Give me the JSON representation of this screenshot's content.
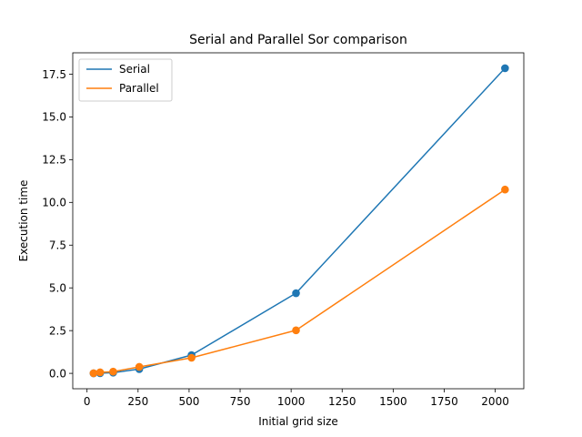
{
  "chart_data": {
    "type": "line",
    "title": "Serial and Parallel Sor comparison",
    "xlabel": "Initial grid size",
    "ylabel": "Execution time",
    "xlim": [
      -70,
      2140
    ],
    "ylim": [
      -0.9,
      18.75
    ],
    "xticks": [
      0,
      250,
      500,
      750,
      1000,
      1250,
      1500,
      1750,
      2000
    ],
    "xtick_labels": [
      "0",
      "250",
      "500",
      "750",
      "1000",
      "1250",
      "1500",
      "1750",
      "2000"
    ],
    "yticks": [
      0.0,
      2.5,
      5.0,
      7.5,
      10.0,
      12.5,
      15.0,
      17.5
    ],
    "ytick_labels": [
      "0.0",
      "2.5",
      "5.0",
      "7.5",
      "10.0",
      "12.5",
      "15.0",
      "17.5"
    ],
    "legend_position": "top-left",
    "grid": false,
    "x": [
      32,
      64,
      128,
      256,
      512,
      1024,
      2048
    ],
    "series": [
      {
        "name": "Serial",
        "color": "#1f77b4",
        "values": [
          0.0,
          0.01,
          0.04,
          0.25,
          1.07,
          4.69,
          17.85
        ],
        "markers": true
      },
      {
        "name": "Parallel",
        "color": "#ff7f0e",
        "values": [
          0.01,
          0.06,
          0.1,
          0.38,
          0.91,
          2.52,
          10.75
        ],
        "markers": true
      }
    ]
  }
}
